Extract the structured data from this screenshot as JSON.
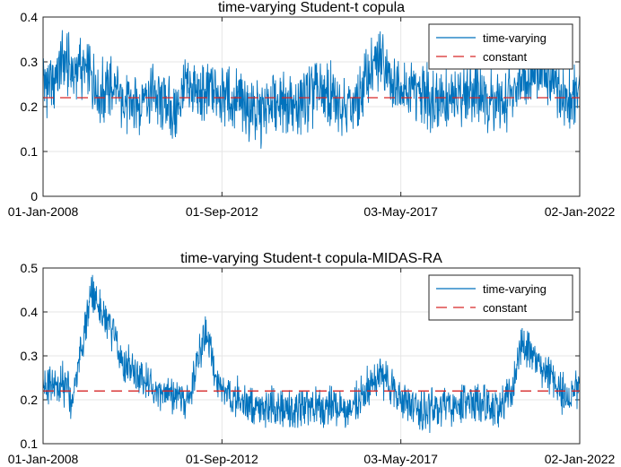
{
  "chart_data": [
    {
      "type": "line",
      "title": "time-varying Student-t copula",
      "xlabel": "",
      "ylabel": "",
      "x_tick_labels": [
        "01-Jan-2008",
        "01-Sep-2012",
        "03-May-2017",
        "02-Jan-2022"
      ],
      "x_range": [
        "01-Jan-2008",
        "02-Jan-2022"
      ],
      "ylim": [
        0,
        0.4
      ],
      "y_ticks": [
        0,
        0.1,
        0.2,
        0.3,
        0.4
      ],
      "y_tick_labels": [
        "0",
        "0.1",
        "0.2",
        "0.3",
        "0.4"
      ],
      "grid": true,
      "legend_position": "top-right",
      "series": [
        {
          "name": "time-varying",
          "color": "#0072bd",
          "style": "solid",
          "x": [
            "2008-01-01",
            "2008-04-01",
            "2008-07-01",
            "2008-10-01",
            "2009-01-01",
            "2009-04-01",
            "2009-07-01",
            "2009-10-01",
            "2010-01-01",
            "2010-04-01",
            "2010-07-01",
            "2010-10-01",
            "2011-01-01",
            "2011-04-01",
            "2011-07-01",
            "2011-10-01",
            "2012-01-01",
            "2012-04-01",
            "2012-07-01",
            "2012-10-01",
            "2013-01-01",
            "2013-04-01",
            "2013-07-01",
            "2013-10-01",
            "2014-01-01",
            "2014-04-01",
            "2014-07-01",
            "2014-10-01",
            "2015-01-01",
            "2015-04-01",
            "2015-07-01",
            "2015-10-01",
            "2016-01-01",
            "2016-04-01",
            "2016-07-01",
            "2016-10-01",
            "2017-01-01",
            "2017-04-01",
            "2017-07-01",
            "2017-10-01",
            "2018-01-01",
            "2018-04-01",
            "2018-07-01",
            "2018-10-01",
            "2019-01-01",
            "2019-04-01",
            "2019-07-01",
            "2019-10-01",
            "2020-01-01",
            "2020-04-01",
            "2020-07-01",
            "2020-10-01",
            "2021-01-01",
            "2021-04-01",
            "2021-07-01",
            "2021-10-01",
            "2022-01-01"
          ],
          "values": [
            0.26,
            0.24,
            0.3,
            0.28,
            0.29,
            0.26,
            0.23,
            0.24,
            0.22,
            0.2,
            0.21,
            0.23,
            0.22,
            0.2,
            0.19,
            0.25,
            0.23,
            0.22,
            0.24,
            0.22,
            0.21,
            0.2,
            0.19,
            0.18,
            0.21,
            0.22,
            0.2,
            0.21,
            0.22,
            0.23,
            0.22,
            0.21,
            0.2,
            0.22,
            0.28,
            0.3,
            0.27,
            0.25,
            0.24,
            0.23,
            0.22,
            0.23,
            0.21,
            0.22,
            0.23,
            0.24,
            0.22,
            0.21,
            0.2,
            0.24,
            0.26,
            0.27,
            0.28,
            0.25,
            0.23,
            0.22,
            0.24
          ]
        },
        {
          "name": "constant",
          "color": "#d62728",
          "style": "dashed",
          "x": [
            "2008-01-01",
            "2022-01-02"
          ],
          "values": [
            0.22,
            0.22
          ]
        }
      ]
    },
    {
      "type": "line",
      "title": "time-varying Student-t copula-MIDAS-RA",
      "xlabel": "",
      "ylabel": "",
      "x_tick_labels": [
        "01-Jan-2008",
        "01-Sep-2012",
        "03-May-2017",
        "02-Jan-2022"
      ],
      "x_range": [
        "01-Jan-2008",
        "02-Jan-2022"
      ],
      "ylim": [
        0.1,
        0.5
      ],
      "y_ticks": [
        0.1,
        0.2,
        0.3,
        0.4,
        0.5
      ],
      "y_tick_labels": [
        "0.1",
        "0.2",
        "0.3",
        "0.4",
        "0.5"
      ],
      "grid": true,
      "legend_position": "top-right",
      "series": [
        {
          "name": "time-varying",
          "color": "#0072bd",
          "style": "solid",
          "x": [
            "2008-01-01",
            "2008-04-01",
            "2008-07-01",
            "2008-10-01",
            "2009-01-01",
            "2009-04-01",
            "2009-07-01",
            "2009-10-01",
            "2010-01-01",
            "2010-04-01",
            "2010-07-01",
            "2010-10-01",
            "2011-01-01",
            "2011-04-01",
            "2011-07-01",
            "2011-10-01",
            "2012-01-01",
            "2012-04-01",
            "2012-07-01",
            "2012-10-01",
            "2013-01-01",
            "2013-04-01",
            "2013-07-01",
            "2013-10-01",
            "2014-01-01",
            "2014-04-01",
            "2014-07-01",
            "2014-10-01",
            "2015-01-01",
            "2015-04-01",
            "2015-07-01",
            "2015-10-01",
            "2016-01-01",
            "2016-04-01",
            "2016-07-01",
            "2016-10-01",
            "2017-01-01",
            "2017-04-01",
            "2017-07-01",
            "2017-10-01",
            "2018-01-01",
            "2018-04-01",
            "2018-07-01",
            "2018-10-01",
            "2019-01-01",
            "2019-04-01",
            "2019-07-01",
            "2019-10-01",
            "2020-01-01",
            "2020-04-01",
            "2020-07-01",
            "2020-10-01",
            "2021-01-01",
            "2021-04-01",
            "2021-07-01",
            "2021-10-01",
            "2022-01-01"
          ],
          "values": [
            0.25,
            0.22,
            0.24,
            0.2,
            0.32,
            0.44,
            0.42,
            0.36,
            0.3,
            0.28,
            0.25,
            0.24,
            0.22,
            0.21,
            0.2,
            0.19,
            0.28,
            0.36,
            0.25,
            0.22,
            0.21,
            0.2,
            0.19,
            0.18,
            0.19,
            0.18,
            0.17,
            0.18,
            0.19,
            0.18,
            0.19,
            0.18,
            0.19,
            0.2,
            0.23,
            0.26,
            0.24,
            0.22,
            0.19,
            0.18,
            0.17,
            0.18,
            0.19,
            0.18,
            0.19,
            0.2,
            0.19,
            0.18,
            0.19,
            0.22,
            0.34,
            0.3,
            0.27,
            0.25,
            0.22,
            0.2,
            0.24
          ]
        },
        {
          "name": "constant",
          "color": "#d62728",
          "style": "dashed",
          "x": [
            "2008-01-01",
            "2022-01-02"
          ],
          "values": [
            0.22,
            0.22
          ]
        }
      ]
    }
  ]
}
